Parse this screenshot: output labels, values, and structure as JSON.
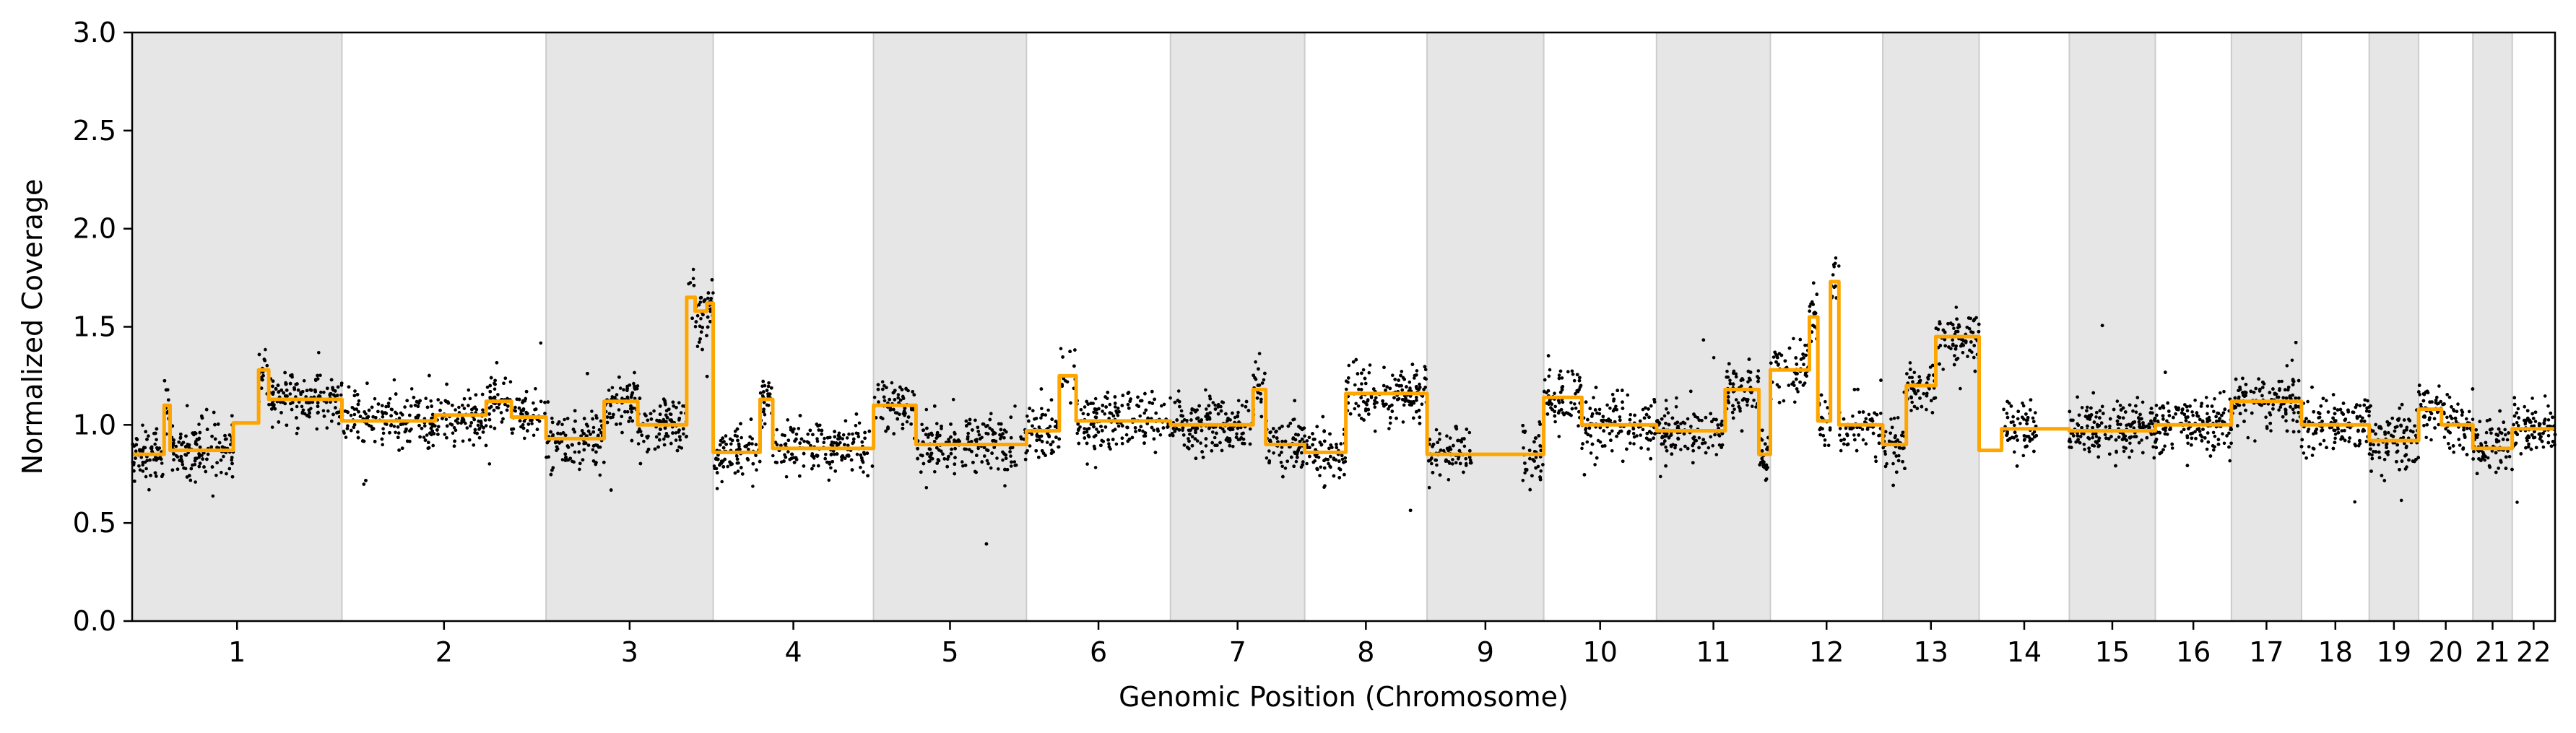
{
  "chart_data": {
    "type": "scatter",
    "title": "",
    "xlabel": "Genomic Position (Chromosome)",
    "ylabel": "Normalized Coverage",
    "ylim": [
      0,
      3.0
    ],
    "yticks": [
      "0.0",
      "0.5",
      "1.0",
      "1.5",
      "2.0",
      "2.5",
      "3.0"
    ],
    "grid": false,
    "legend": "none",
    "colors": {
      "points": "#000000",
      "segments": "#FFA500",
      "band": "#e6e6e6",
      "band_edge": "#cccccc"
    },
    "chromosomes": [
      {
        "name": "1",
        "start": 0.0,
        "end": 248.9
      },
      {
        "name": "2",
        "start": 248.9,
        "end": 491.1
      },
      {
        "name": "3",
        "start": 491.1,
        "end": 689.4
      },
      {
        "name": "4",
        "start": 689.4,
        "end": 879.6
      },
      {
        "name": "5",
        "start": 879.6,
        "end": 1061.1
      },
      {
        "name": "6",
        "start": 1061.1,
        "end": 1231.9
      },
      {
        "name": "7",
        "start": 1231.9,
        "end": 1391.2
      },
      {
        "name": "8",
        "start": 1391.2,
        "end": 1536.4
      },
      {
        "name": "9",
        "start": 1536.4,
        "end": 1674.8
      },
      {
        "name": "10",
        "start": 1674.8,
        "end": 1808.6
      },
      {
        "name": "11",
        "start": 1808.6,
        "end": 1943.7
      },
      {
        "name": "12",
        "start": 1943.7,
        "end": 2077.0
      },
      {
        "name": "13",
        "start": 2077.0,
        "end": 2191.4
      },
      {
        "name": "14",
        "start": 2191.4,
        "end": 2298.4
      },
      {
        "name": "15",
        "start": 2298.4,
        "end": 2400.4
      },
      {
        "name": "16",
        "start": 2400.4,
        "end": 2490.7
      },
      {
        "name": "17",
        "start": 2490.7,
        "end": 2573.9
      },
      {
        "name": "18",
        "start": 2573.9,
        "end": 2654.2
      },
      {
        "name": "19",
        "start": 2654.2,
        "end": 2712.8
      },
      {
        "name": "20",
        "start": 2712.8,
        "end": 2777.2
      },
      {
        "name": "21",
        "start": 2777.2,
        "end": 2823.9
      },
      {
        "name": "22",
        "start": 2823.9,
        "end": 2874.7
      }
    ],
    "xlim": [
      0,
      2874.7
    ],
    "segments": [
      {
        "x0": 0,
        "x1": 38,
        "y": 0.85
      },
      {
        "x0": 38,
        "x1": 45,
        "y": 1.1
      },
      {
        "x0": 45,
        "x1": 120,
        "y": 0.87
      },
      {
        "x0": 120,
        "x1": 150,
        "y": 1.01
      },
      {
        "x0": 150,
        "x1": 162,
        "y": 1.28
      },
      {
        "x0": 162,
        "x1": 248.9,
        "y": 1.13
      },
      {
        "x0": 248.9,
        "x1": 360,
        "y": 1.02
      },
      {
        "x0": 360,
        "x1": 420,
        "y": 1.05
      },
      {
        "x0": 420,
        "x1": 450,
        "y": 1.12
      },
      {
        "x0": 450,
        "x1": 491.1,
        "y": 1.04
      },
      {
        "x0": 491.1,
        "x1": 560,
        "y": 0.93
      },
      {
        "x0": 560,
        "x1": 600,
        "y": 1.12
      },
      {
        "x0": 600,
        "x1": 658,
        "y": 1.0
      },
      {
        "x0": 658,
        "x1": 668,
        "y": 1.65
      },
      {
        "x0": 668,
        "x1": 682,
        "y": 1.58
      },
      {
        "x0": 682,
        "x1": 689.4,
        "y": 1.62
      },
      {
        "x0": 689.4,
        "x1": 745,
        "y": 0.86
      },
      {
        "x0": 745,
        "x1": 760,
        "y": 1.13
      },
      {
        "x0": 760,
        "x1": 879.6,
        "y": 0.88
      },
      {
        "x0": 879.6,
        "x1": 930,
        "y": 1.1
      },
      {
        "x0": 930,
        "x1": 1061.1,
        "y": 0.9
      },
      {
        "x0": 1061.1,
        "x1": 1100,
        "y": 0.97
      },
      {
        "x0": 1100,
        "x1": 1120,
        "y": 1.25
      },
      {
        "x0": 1120,
        "x1": 1231.9,
        "y": 1.02
      },
      {
        "x0": 1231.9,
        "x1": 1330,
        "y": 1.0
      },
      {
        "x0": 1330,
        "x1": 1345,
        "y": 1.18
      },
      {
        "x0": 1345,
        "x1": 1391.2,
        "y": 0.9
      },
      {
        "x0": 1391.2,
        "x1": 1440,
        "y": 0.86
      },
      {
        "x0": 1440,
        "x1": 1536.4,
        "y": 1.16
      },
      {
        "x0": 1536.4,
        "x1": 1674.8,
        "y": 0.85
      },
      {
        "x0": 1674.8,
        "x1": 1720,
        "y": 1.14
      },
      {
        "x0": 1720,
        "x1": 1808.6,
        "y": 1.0
      },
      {
        "x0": 1808.6,
        "x1": 1890,
        "y": 0.97
      },
      {
        "x0": 1890,
        "x1": 1930,
        "y": 1.18
      },
      {
        "x0": 1930,
        "x1": 1943.7,
        "y": 0.85
      },
      {
        "x0": 1943.7,
        "x1": 1990,
        "y": 1.28
      },
      {
        "x0": 1990,
        "x1": 2000,
        "y": 1.55
      },
      {
        "x0": 2000,
        "x1": 2015,
        "y": 1.02
      },
      {
        "x0": 2015,
        "x1": 2025,
        "y": 1.73
      },
      {
        "x0": 2025,
        "x1": 2077.0,
        "y": 1.0
      },
      {
        "x0": 2077.0,
        "x1": 2105,
        "y": 0.9
      },
      {
        "x0": 2105,
        "x1": 2140,
        "y": 1.2
      },
      {
        "x0": 2140,
        "x1": 2191.4,
        "y": 1.45
      },
      {
        "x0": 2191.4,
        "x1": 2218,
        "y": 0.87
      },
      {
        "x0": 2218,
        "x1": 2298.4,
        "y": 0.98
      },
      {
        "x0": 2298.4,
        "x1": 2400.4,
        "y": 0.97
      },
      {
        "x0": 2400.4,
        "x1": 2490.7,
        "y": 1.0
      },
      {
        "x0": 2490.7,
        "x1": 2573.9,
        "y": 1.12
      },
      {
        "x0": 2573.9,
        "x1": 2654.2,
        "y": 1.0
      },
      {
        "x0": 2654.2,
        "x1": 2712.8,
        "y": 0.92
      },
      {
        "x0": 2712.8,
        "x1": 2740,
        "y": 1.08
      },
      {
        "x0": 2740,
        "x1": 2777.2,
        "y": 1.0
      },
      {
        "x0": 2777.2,
        "x1": 2823.9,
        "y": 0.88
      },
      {
        "x0": 2823.9,
        "x1": 2874.7,
        "y": 0.98
      }
    ],
    "point_noise": 0.07,
    "point_count": 9000
  }
}
